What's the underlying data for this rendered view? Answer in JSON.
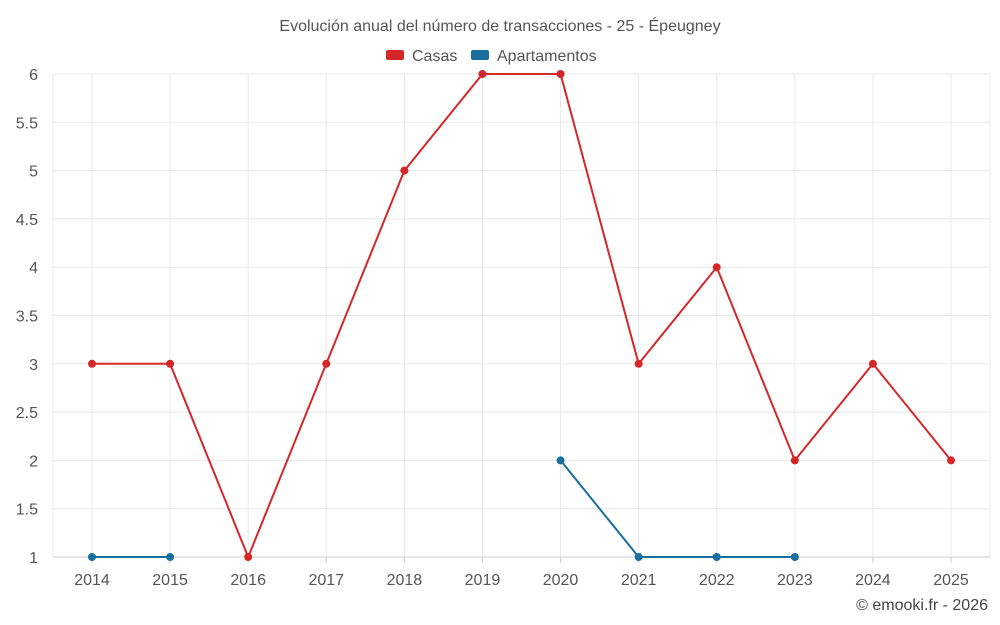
{
  "chart_data": {
    "type": "line",
    "title": "Evolución anual del número de transacciones - 25 - Épeugney",
    "categories": [
      "2014",
      "2015",
      "2016",
      "2017",
      "2018",
      "2019",
      "2020",
      "2021",
      "2022",
      "2023",
      "2024",
      "2025"
    ],
    "series": [
      {
        "name": "Casas",
        "color": "#d62728",
        "values": [
          3,
          3,
          1,
          3,
          5,
          6,
          6,
          3,
          4,
          2,
          3,
          2
        ]
      },
      {
        "name": "Apartamentos",
        "color": "#1a6ea0",
        "values": [
          1,
          1,
          null,
          null,
          null,
          null,
          2,
          1,
          1,
          1,
          null,
          null
        ]
      }
    ],
    "ylim": [
      1,
      6
    ],
    "yticks": [
      "1",
      "1.5",
      "2",
      "2.5",
      "3",
      "3.5",
      "4",
      "4.5",
      "5",
      "5.5",
      "6"
    ],
    "grid": true,
    "legend_position": "top-center",
    "xlabel": "",
    "ylabel": ""
  },
  "credit": "© emooki.fr - 2026"
}
